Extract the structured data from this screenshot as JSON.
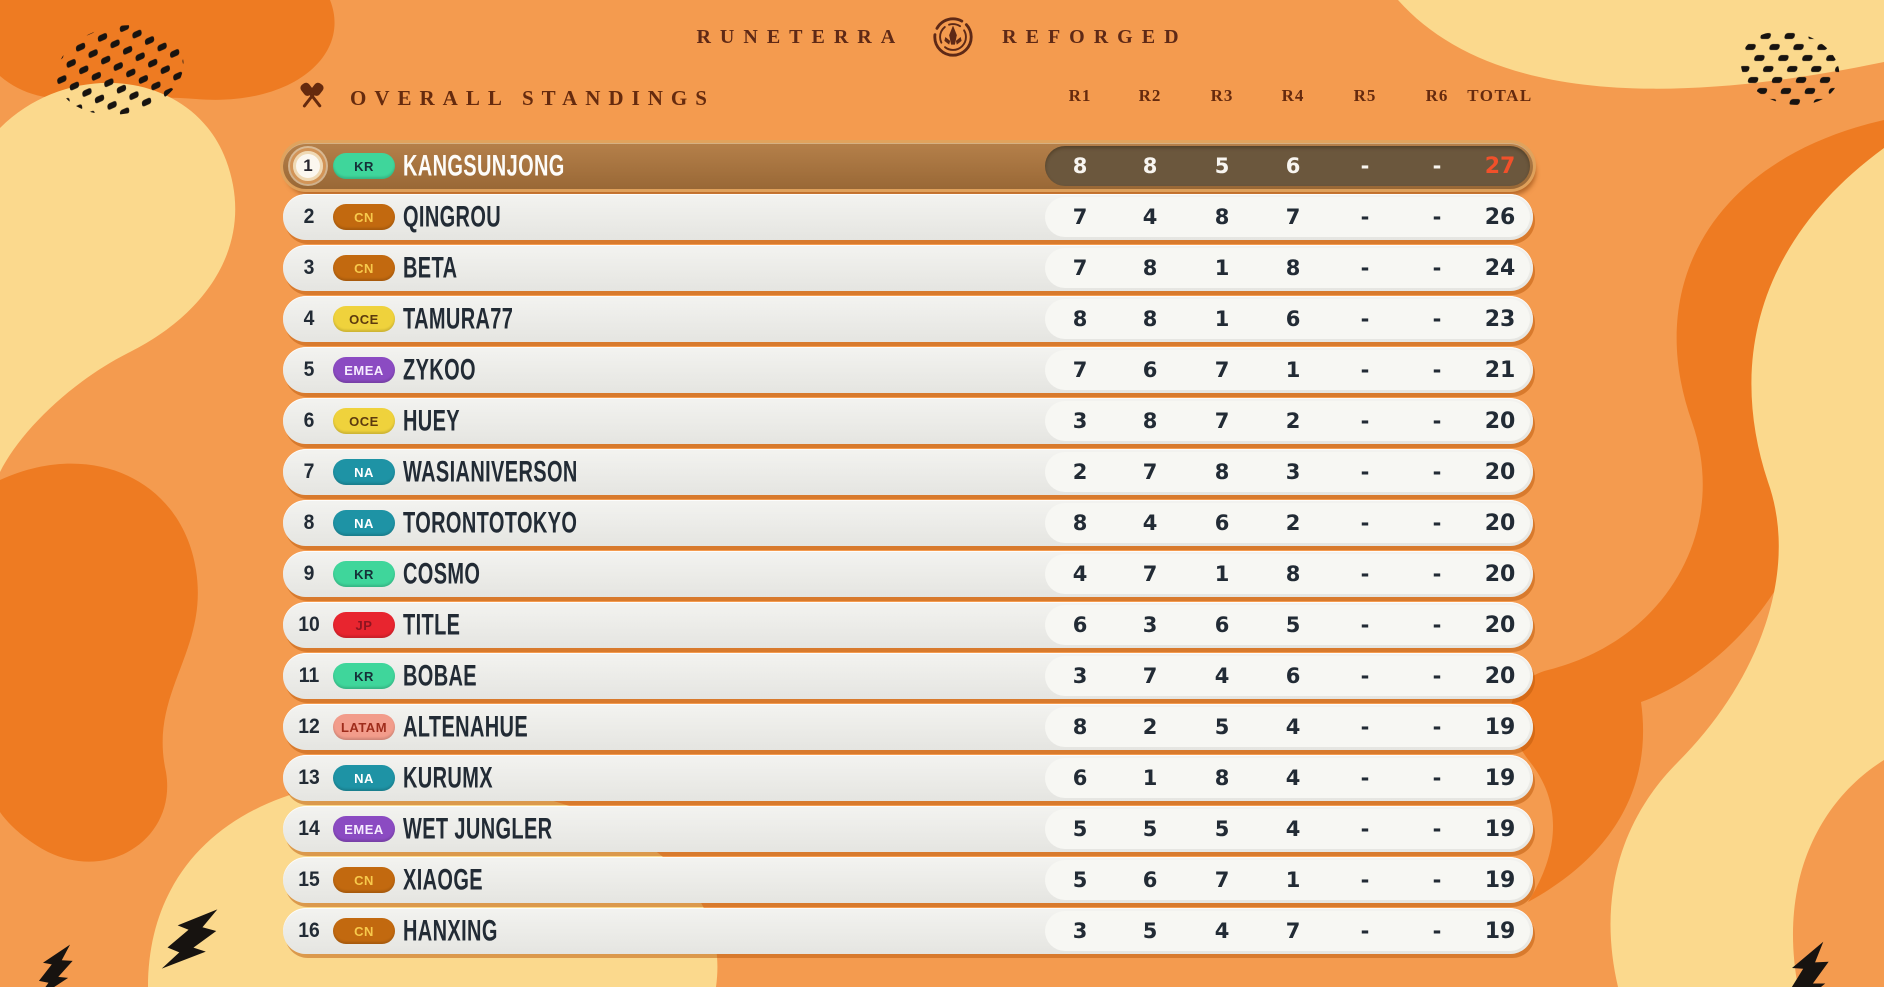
{
  "title": {
    "left": "RUNETERRA",
    "right": "REFORGED",
    "logo": "runeterra-crest-icon"
  },
  "standings": {
    "heading": "OVERALL STANDINGS",
    "heading_icon": "crossed-paddles-icon",
    "columns": [
      "R1",
      "R2",
      "R3",
      "R4",
      "R5",
      "R6",
      "TOTAL"
    ],
    "rows": [
      {
        "rank": "1",
        "region": "KR",
        "name": "KANGSUNJONG",
        "scores": [
          "8",
          "8",
          "5",
          "6",
          "-",
          "-"
        ],
        "total": "27",
        "highlight": true
      },
      {
        "rank": "2",
        "region": "CN",
        "name": "QINGROU",
        "scores": [
          "7",
          "4",
          "8",
          "7",
          "-",
          "-"
        ],
        "total": "26",
        "highlight": false
      },
      {
        "rank": "3",
        "region": "CN",
        "name": "BETA",
        "scores": [
          "7",
          "8",
          "1",
          "8",
          "-",
          "-"
        ],
        "total": "24",
        "highlight": false
      },
      {
        "rank": "4",
        "region": "OCE",
        "name": "TAMURA77",
        "scores": [
          "8",
          "8",
          "1",
          "6",
          "-",
          "-"
        ],
        "total": "23",
        "highlight": false
      },
      {
        "rank": "5",
        "region": "EMEA",
        "name": "ZYKOO",
        "scores": [
          "7",
          "6",
          "7",
          "1",
          "-",
          "-"
        ],
        "total": "21",
        "highlight": false
      },
      {
        "rank": "6",
        "region": "OCE",
        "name": "HUEY",
        "scores": [
          "3",
          "8",
          "7",
          "2",
          "-",
          "-"
        ],
        "total": "20",
        "highlight": false
      },
      {
        "rank": "7",
        "region": "NA",
        "name": "WASIANIVERSON",
        "scores": [
          "2",
          "7",
          "8",
          "3",
          "-",
          "-"
        ],
        "total": "20",
        "highlight": false
      },
      {
        "rank": "8",
        "region": "NA",
        "name": "TORONTOTOKYO",
        "scores": [
          "8",
          "4",
          "6",
          "2",
          "-",
          "-"
        ],
        "total": "20",
        "highlight": false
      },
      {
        "rank": "9",
        "region": "KR",
        "name": "COSMO",
        "scores": [
          "4",
          "7",
          "1",
          "8",
          "-",
          "-"
        ],
        "total": "20",
        "highlight": false
      },
      {
        "rank": "10",
        "region": "JP",
        "name": "TITLE",
        "scores": [
          "6",
          "3",
          "6",
          "5",
          "-",
          "-"
        ],
        "total": "20",
        "highlight": false
      },
      {
        "rank": "11",
        "region": "KR",
        "name": "BOBAE",
        "scores": [
          "3",
          "7",
          "4",
          "6",
          "-",
          "-"
        ],
        "total": "20",
        "highlight": false
      },
      {
        "rank": "12",
        "region": "LATAM",
        "name": "ALTENAHUE",
        "scores": [
          "8",
          "2",
          "5",
          "4",
          "-",
          "-"
        ],
        "total": "19",
        "highlight": false
      },
      {
        "rank": "13",
        "region": "NA",
        "name": "KURUMX",
        "scores": [
          "6",
          "1",
          "8",
          "4",
          "-",
          "-"
        ],
        "total": "19",
        "highlight": false
      },
      {
        "rank": "14",
        "region": "EMEA",
        "name": "WET JUNGLER",
        "scores": [
          "5",
          "5",
          "5",
          "4",
          "-",
          "-"
        ],
        "total": "19",
        "highlight": false
      },
      {
        "rank": "15",
        "region": "CN",
        "name": "XIAOGE",
        "scores": [
          "5",
          "6",
          "7",
          "1",
          "-",
          "-"
        ],
        "total": "19",
        "highlight": false
      },
      {
        "rank": "16",
        "region": "CN",
        "name": "HANXING",
        "scores": [
          "3",
          "5",
          "4",
          "7",
          "-",
          "-"
        ],
        "total": "19",
        "highlight": false
      }
    ]
  },
  "regions": {
    "KR": {
      "bg": "#3FD69B",
      "fg": "#153038"
    },
    "CN": {
      "bg": "#C2690F",
      "fg": "#F7C94B"
    },
    "OCE": {
      "bg": "#EFD23C",
      "fg": "#5C3A0E"
    },
    "EMEA": {
      "bg": "#8B4BC2",
      "fg": "#F6ECFF"
    },
    "NA": {
      "bg": "#1E93A5",
      "fg": "#FFFFFF"
    },
    "JP": {
      "bg": "#E8252F",
      "fg": "#8E1420"
    },
    "LATAM": {
      "bg": "#F29C8B",
      "fg": "#9E2C1B"
    }
  },
  "colors": {
    "background_base": "#F49B4F",
    "background_light": "#FBD98D",
    "background_dark": "#EE7B22",
    "heading_text": "#652A0E",
    "title_text": "#5E2916",
    "row_text": "#222B35",
    "top_row_bg": "#A9773F",
    "top_row_capsule": "#6B573D",
    "top_row_total": "#F1502A",
    "decoration_black": "#171310"
  }
}
